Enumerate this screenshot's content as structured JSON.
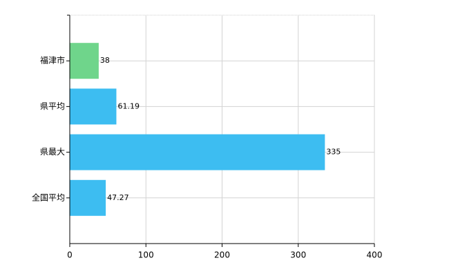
{
  "chart_data": {
    "type": "barh",
    "categories": [
      "福津市",
      "県平均",
      "県最大",
      "全国平均"
    ],
    "values": [
      38,
      61.19,
      335,
      47.27
    ],
    "colors": [
      "#6fd58b",
      "#3dbdf1",
      "#3dbdf1",
      "#3dbdf1"
    ],
    "xlim": [
      0,
      400
    ],
    "xticks": [
      0,
      100,
      200,
      300,
      400
    ],
    "grid": true
  }
}
